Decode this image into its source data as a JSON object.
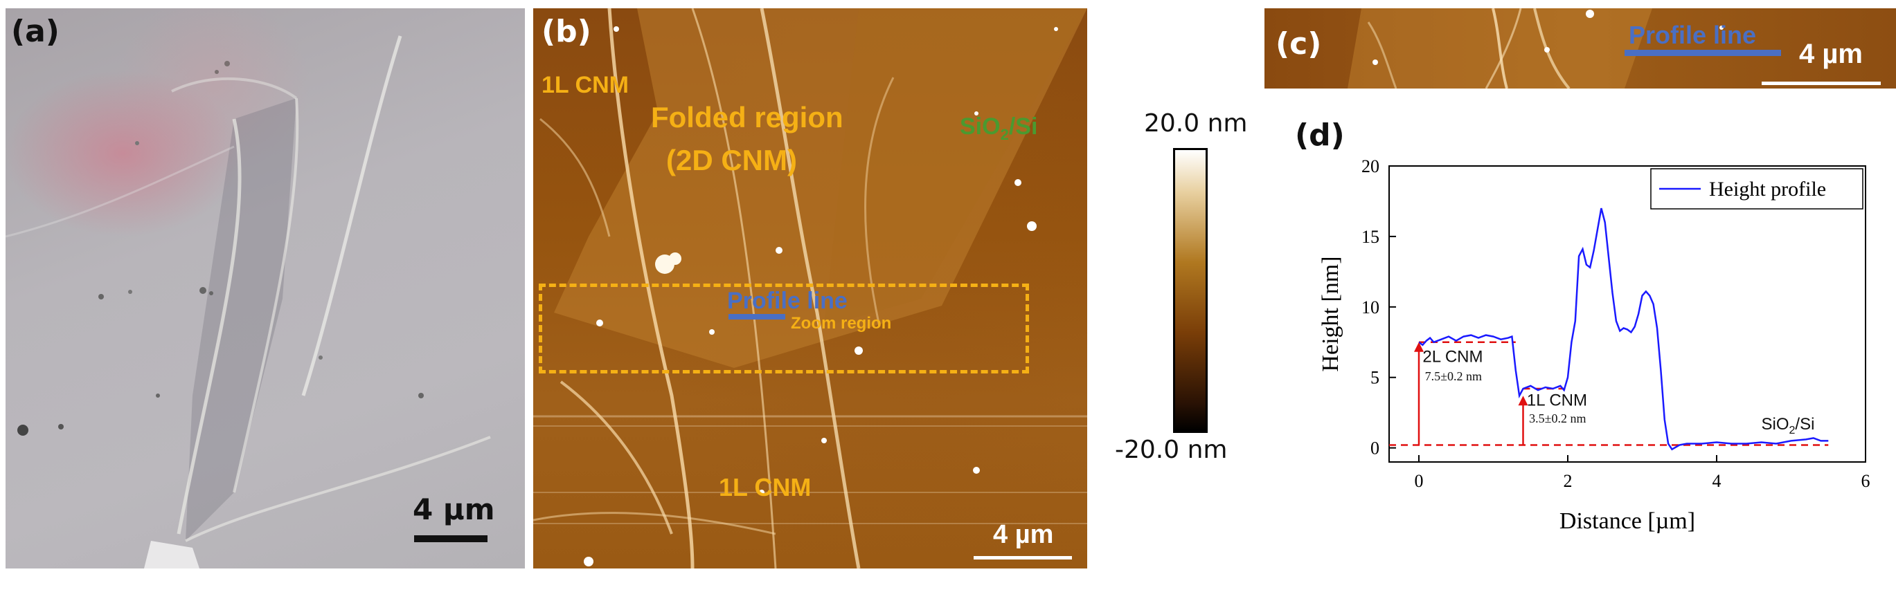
{
  "panels": {
    "a": {
      "letter": "(a)",
      "scale_bar": "4 µm"
    },
    "b": {
      "letter": "(b)",
      "labels": {
        "top_left": "1L CNM",
        "folded_line1": "Folded region",
        "folded_line2": "(2D CNM)",
        "substrate": "SiO",
        "substrate_sub": "2",
        "substrate_suffix": "/Si",
        "profile": "Profile line",
        "zoom": "Zoom region",
        "bottom": "1L CNM"
      },
      "scale_bar": "4 µm"
    },
    "c": {
      "letter": "(c)",
      "profile": "Profile line",
      "scale_bar": "4 µm"
    },
    "d": {
      "letter": "(d)"
    }
  },
  "colorbar": {
    "max": "20.0 nm",
    "min": "-20.0 nm"
  },
  "colors": {
    "accent_orange": "#f5b015",
    "profile_blue": "#4a6fc4",
    "plot_blue": "#1a1aff",
    "annotation_red": "#e01010",
    "substrate_green": "#4a9a30"
  },
  "chart_data": {
    "type": "line",
    "xlabel": "Distance [µm]",
    "ylabel": "Height [nm]",
    "xlim": [
      -0.4,
      6
    ],
    "ylim": [
      -1,
      20
    ],
    "xticks": [
      0,
      2,
      4,
      6
    ],
    "yticks": [
      0,
      5,
      10,
      15,
      20
    ],
    "legend": "Height profile",
    "legend_position": "top-right",
    "series": [
      {
        "name": "Height profile",
        "x": [
          0.0,
          0.05,
          0.1,
          0.15,
          0.2,
          0.3,
          0.4,
          0.5,
          0.6,
          0.7,
          0.8,
          0.9,
          1.0,
          1.1,
          1.2,
          1.25,
          1.3,
          1.35,
          1.4,
          1.5,
          1.6,
          1.7,
          1.8,
          1.9,
          1.95,
          2.0,
          2.05,
          2.1,
          2.15,
          2.2,
          2.25,
          2.3,
          2.35,
          2.4,
          2.45,
          2.5,
          2.55,
          2.6,
          2.65,
          2.7,
          2.75,
          2.8,
          2.85,
          2.9,
          2.95,
          3.0,
          3.05,
          3.1,
          3.15,
          3.2,
          3.25,
          3.3,
          3.35,
          3.4,
          3.5,
          3.6,
          3.8,
          4.0,
          4.2,
          4.4,
          4.6,
          4.8,
          5.0,
          5.2,
          5.3,
          5.4,
          5.5
        ],
        "y": [
          7.5,
          7.3,
          7.6,
          7.8,
          7.5,
          7.7,
          7.9,
          7.6,
          7.9,
          8.0,
          7.8,
          8.0,
          7.9,
          7.7,
          7.8,
          7.9,
          5.5,
          3.7,
          4.2,
          4.4,
          4.1,
          4.3,
          4.2,
          4.4,
          4.1,
          5.0,
          7.5,
          9.0,
          13.6,
          14.1,
          13.0,
          12.8,
          14.0,
          15.5,
          17.0,
          16.0,
          13.5,
          11.0,
          9.0,
          8.3,
          8.5,
          8.4,
          8.2,
          8.6,
          9.5,
          10.8,
          11.1,
          10.8,
          10.2,
          8.5,
          5.5,
          2.0,
          0.3,
          -0.1,
          0.2,
          0.3,
          0.3,
          0.4,
          0.3,
          0.3,
          0.4,
          0.3,
          0.5,
          0.6,
          0.7,
          0.5,
          0.5
        ]
      }
    ],
    "baseline": {
      "y": 0.2,
      "color": "#e01010"
    },
    "annotations": [
      {
        "text": "2L CNM",
        "sub": "7.5±0.2 nm",
        "x": 0.0,
        "y_from": 0.2,
        "y_to": 7.5
      },
      {
        "text": "1L CNM",
        "sub": "3.5±0.2 nm",
        "x": 1.4,
        "y_from": 0.2,
        "y_to": 3.7
      },
      {
        "text": "SiO",
        "text_sub": "2",
        "text_suffix": "/Si",
        "x": 4.6,
        "y": 1.3
      }
    ]
  }
}
